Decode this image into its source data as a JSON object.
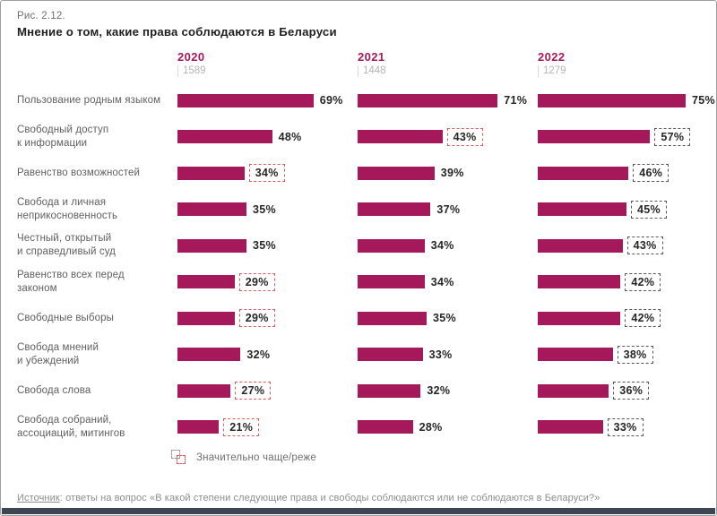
{
  "page": {
    "figure_label": "Рис. 2.12.",
    "title": "Мнение о том, какие права соблюдаются в Беларуси",
    "legend_label": "Значительно чаще/реже",
    "source_label": "Источник",
    "source_text": ": ответы на вопрос «В какой степени следующие права и свободы соблюдаются или не соблюдаются в Беларуси?»"
  },
  "colors": {
    "bar": "#a5185a",
    "accent_year": "#a5185a",
    "flag_red": "#e05a5a",
    "flag_dark": "#555555",
    "bottom_bar": "#3e4553"
  },
  "chart_data": {
    "type": "bar",
    "orientation": "horizontal",
    "unit": "%",
    "xlim": [
      0,
      100
    ],
    "title": "Мнение о том, какие права соблюдаются в Беларуси",
    "legend": [
      "Значительно чаще/реже"
    ],
    "legend_note": "dashed box around value = significantly more/less often",
    "categories": [
      "Пользование родным языком",
      "Свободный доступ\nк информации",
      "Равенство возможностей",
      "Свобода и личная\nнеприкосновенность",
      "Честный, открытый\nи справедливый суд",
      "Равенство всех перед\nзаконом",
      "Свободные выборы",
      "Свобода мнений\nи убеждений",
      "Свобода слова",
      "Свобода собраний,\nассоциаций, митингов"
    ],
    "series": [
      {
        "name": "2020",
        "n": "1589",
        "values": [
          69,
          48,
          34,
          35,
          35,
          29,
          29,
          32,
          27,
          21
        ],
        "flags": [
          null,
          null,
          "red",
          null,
          null,
          "red",
          "red",
          null,
          "red",
          "red"
        ]
      },
      {
        "name": "2021",
        "n": "1448",
        "values": [
          71,
          43,
          39,
          37,
          34,
          34,
          35,
          33,
          32,
          28
        ],
        "flags": [
          null,
          "red",
          null,
          null,
          null,
          null,
          null,
          null,
          null,
          null
        ]
      },
      {
        "name": "2022",
        "n": "1279",
        "values": [
          75,
          57,
          46,
          45,
          43,
          42,
          42,
          38,
          36,
          33
        ],
        "flags": [
          null,
          "dark",
          "dark",
          "dark",
          "dark",
          "dark",
          "dark",
          "dark",
          "dark",
          "dark"
        ]
      }
    ]
  }
}
